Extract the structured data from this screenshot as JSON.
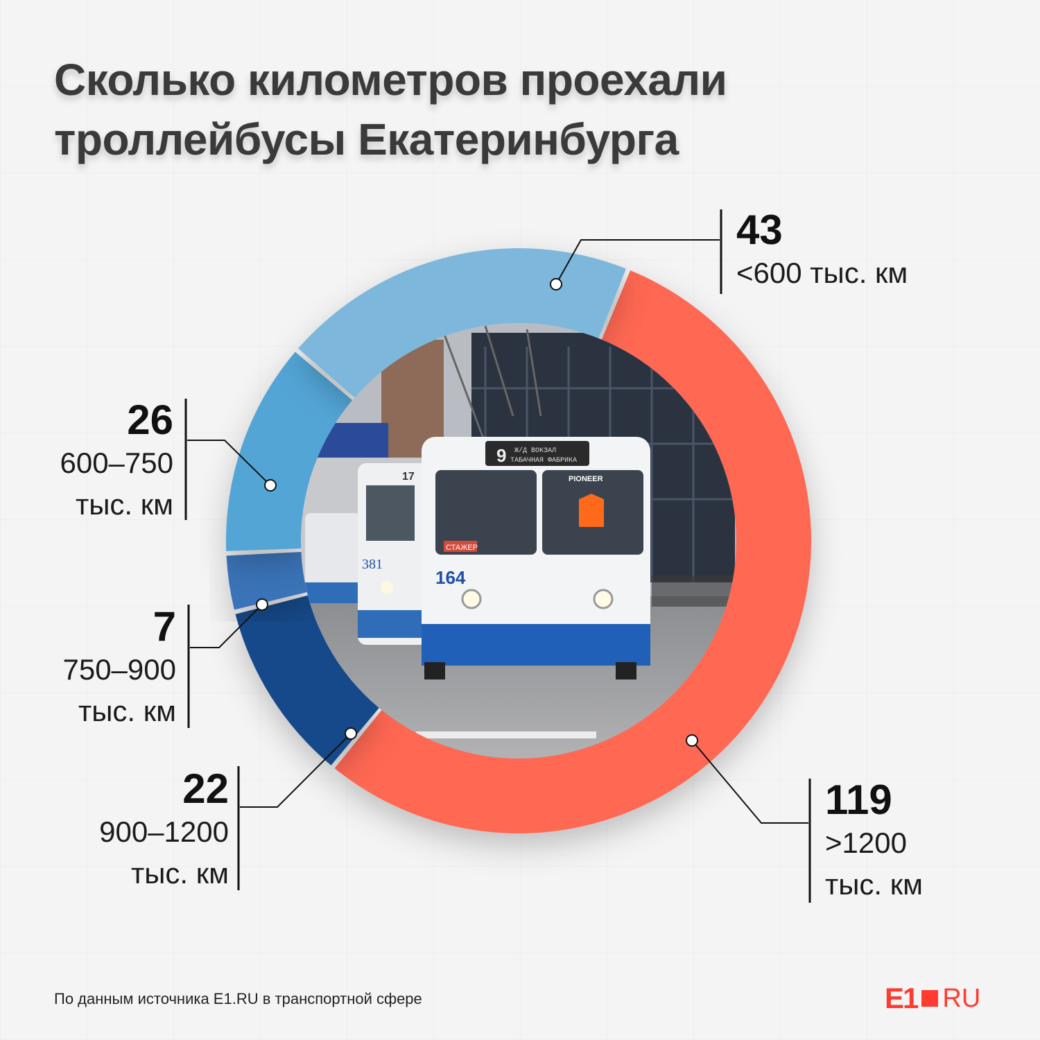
{
  "title_lines": [
    "Сколько километров проехали",
    "троллейбусы Екатеринбурга"
  ],
  "chart_data": {
    "type": "donut",
    "title": "Сколько километров проехали троллейбусы Екатеринбурга",
    "segments": [
      {
        "value": 119,
        "range": ">1200",
        "unit": "тыс. км",
        "color": "#ff6753"
      },
      {
        "value": 22,
        "range": "900–1200",
        "unit": "тыс. км",
        "color": "#174889"
      },
      {
        "value": 7,
        "range": "750–900",
        "unit": "тыс. км",
        "color": "#3a73b8"
      },
      {
        "value": 26,
        "range": "600–750",
        "unit": "тыс. км",
        "color": "#53a5d6"
      },
      {
        "value": 43,
        "range": "<600 тыс. км",
        "unit": "",
        "color": "#7db7dc"
      }
    ],
    "center_image": "trolleybus-photo"
  },
  "labels": {
    "l43": {
      "value": "43",
      "range": "<600 тыс. км"
    },
    "l26": {
      "value": "26",
      "range": "600–750",
      "unit": "тыс. км"
    },
    "l7": {
      "value": "7",
      "range": "750–900",
      "unit": "тыс. км"
    },
    "l22": {
      "value": "22",
      "range": "900–1200",
      "unit": "тыс. км"
    },
    "l119": {
      "value": "119",
      "range": ">1200",
      "unit": "тыс. км"
    }
  },
  "source": "По данным источника E1.RU в транспортной сфере",
  "logo": {
    "left": "E1",
    "right": "RU"
  },
  "photo_texts": {
    "route": "9",
    "destination_top": "Ж/Д ВОКЗАЛ",
    "destination_bottom": "ТАБАЧНАЯ ФАБРИКА",
    "brand": "PIONEER",
    "sign": "СТАЖЕР",
    "fleet_a": "164",
    "fleet_b": "381",
    "route_b": "17"
  }
}
